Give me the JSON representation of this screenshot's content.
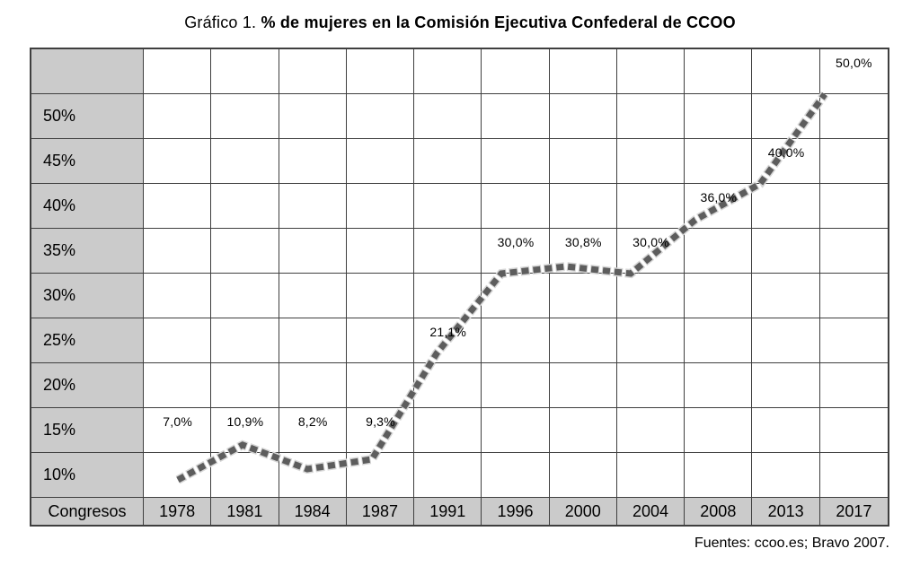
{
  "chart_data": {
    "type": "line",
    "title_prefix": "Gráfico 1.",
    "title": "% de mujeres en la Comisión Ejecutiva Confederal de CCOO",
    "x_header": "Congresos",
    "categories": [
      "1978",
      "1981",
      "1984",
      "1987",
      "1991",
      "1996",
      "2000",
      "2004",
      "2008",
      "2013",
      "2017"
    ],
    "series": [
      {
        "name": "% de mujeres en la Comisión Ejecutiva Confederal",
        "values": [
          7.0,
          10.9,
          8.2,
          9.3,
          21.1,
          30.0,
          30.8,
          30.0,
          36.0,
          40.0,
          50.0
        ],
        "point_labels": [
          "7,0%",
          "10,9%",
          "8,2%",
          "9,3%",
          "21,1%",
          "30,0%",
          "30,8%",
          "30,0%",
          "36,0%",
          "40,0%",
          "50,0%"
        ]
      }
    ],
    "y_tick_labels": [
      "50%",
      "45%",
      "40%",
      "35%",
      "30%",
      "25%",
      "20%",
      "15%",
      "10%"
    ],
    "y_tick_values": [
      50,
      45,
      40,
      35,
      30,
      25,
      20,
      15,
      10
    ],
    "ylim": [
      5,
      55
    ],
    "grid": true,
    "legend": false,
    "line_style": "thick-dashed-gray",
    "source": "Fuentes: ccoo.es; Bravo 2007."
  },
  "colors": {
    "background": "#ffffff",
    "cell_gray": "#cbcbcb",
    "grid_line": "#3f3f3f",
    "series_line": "#5d5d5d",
    "series_halo": "#d6d6d6",
    "text": "#000000"
  }
}
